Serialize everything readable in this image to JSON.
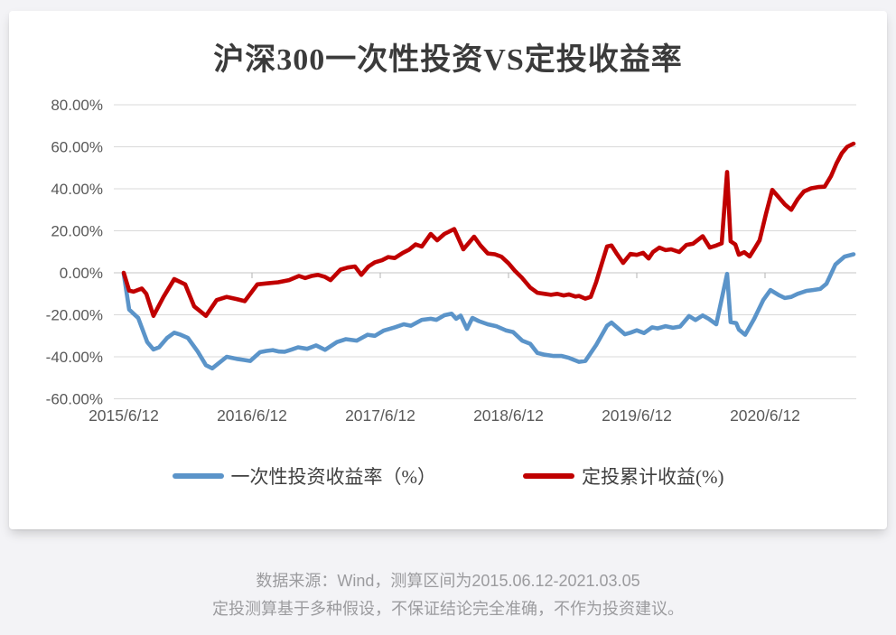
{
  "page": {
    "background": "#f3f3f6"
  },
  "card": {
    "background": "#ffffff"
  },
  "chart_data": {
    "type": "line",
    "title": "沪深300一次性投资VS定投收益率",
    "grid": true,
    "legend_position": "bottom",
    "x_axis": {
      "tick_labels": [
        "2015/6/12",
        "2016/6/12",
        "2017/6/12",
        "2018/6/12",
        "2019/6/12",
        "2020/6/12"
      ],
      "note": "x values of points are years since 2015/6/12; data runs to 2021.03.05"
    },
    "y_axis": {
      "tick_labels": [
        "80.00%",
        "60.00%",
        "40.00%",
        "20.00%",
        "0.00%",
        "-20.00%",
        "-40.00%",
        "-60.00%"
      ],
      "max": 80,
      "min": -60,
      "step": 20,
      "unit": "%"
    },
    "colors": {
      "one_time": "#5b94c9",
      "regular_plan": "#c00000",
      "gridline": "#d9d9d9",
      "axis_text": "#595959"
    },
    "series": [
      {
        "name": "一次性投资收益率（%）",
        "color": "#5b94c9",
        "points": [
          [
            0,
            -0.5
          ],
          [
            0.042,
            -17.5
          ],
          [
            0.077,
            -19.5
          ],
          [
            0.113,
            -21.5
          ],
          [
            0.183,
            -33
          ],
          [
            0.232,
            -36.5
          ],
          [
            0.275,
            -35.5
          ],
          [
            0.338,
            -31
          ],
          [
            0.394,
            -28.5
          ],
          [
            0.444,
            -29.5
          ],
          [
            0.5,
            -31
          ],
          [
            0.577,
            -37.5
          ],
          [
            0.641,
            -44
          ],
          [
            0.69,
            -45.5
          ],
          [
            0.732,
            -43.5
          ],
          [
            0.803,
            -40
          ],
          [
            0.88,
            -41
          ],
          [
            0.937,
            -41.5
          ],
          [
            0.986,
            -42
          ],
          [
            1.063,
            -37.8
          ],
          [
            1.113,
            -37.2
          ],
          [
            1.162,
            -36.8
          ],
          [
            1.211,
            -37.5
          ],
          [
            1.254,
            -37.6
          ],
          [
            1.31,
            -36.5
          ],
          [
            1.359,
            -35.5
          ],
          [
            1.43,
            -36.2
          ],
          [
            1.5,
            -34.6
          ],
          [
            1.57,
            -36.7
          ],
          [
            1.662,
            -33
          ],
          [
            1.732,
            -31.6
          ],
          [
            1.817,
            -32.3
          ],
          [
            1.901,
            -29.5
          ],
          [
            1.958,
            -30
          ],
          [
            2.028,
            -27.5
          ],
          [
            2.113,
            -26
          ],
          [
            2.183,
            -24.5
          ],
          [
            2.239,
            -25.2
          ],
          [
            2.324,
            -22.4
          ],
          [
            2.394,
            -21.9
          ],
          [
            2.437,
            -22.4
          ],
          [
            2.5,
            -20.2
          ],
          [
            2.556,
            -19.5
          ],
          [
            2.592,
            -21.9
          ],
          [
            2.627,
            -20.4
          ],
          [
            2.676,
            -26.7
          ],
          [
            2.718,
            -21.5
          ],
          [
            2.768,
            -23
          ],
          [
            2.838,
            -24.5
          ],
          [
            2.908,
            -25.5
          ],
          [
            2.979,
            -27.4
          ],
          [
            3.035,
            -28.2
          ],
          [
            3.106,
            -32.3
          ],
          [
            3.169,
            -33.8
          ],
          [
            3.225,
            -38.2
          ],
          [
            3.282,
            -39
          ],
          [
            3.352,
            -39.6
          ],
          [
            3.415,
            -39.6
          ],
          [
            3.472,
            -40.5
          ],
          [
            3.521,
            -41.7
          ],
          [
            3.549,
            -42.4
          ],
          [
            3.599,
            -42
          ],
          [
            3.683,
            -34.4
          ],
          [
            3.768,
            -25.2
          ],
          [
            3.803,
            -23.7
          ],
          [
            3.859,
            -26.7
          ],
          [
            3.908,
            -29.3
          ],
          [
            3.951,
            -28.5
          ],
          [
            4,
            -27.4
          ],
          [
            4.056,
            -28.7
          ],
          [
            4.12,
            -26
          ],
          [
            4.162,
            -26.5
          ],
          [
            4.225,
            -25.4
          ],
          [
            4.282,
            -26.2
          ],
          [
            4.338,
            -25.6
          ],
          [
            4.408,
            -20.6
          ],
          [
            4.458,
            -22.5
          ],
          [
            4.514,
            -20.3
          ],
          [
            4.563,
            -22
          ],
          [
            4.62,
            -24.5
          ],
          [
            4.704,
            -0.5
          ],
          [
            4.732,
            -23.5
          ],
          [
            4.775,
            -24
          ],
          [
            4.796,
            -27
          ],
          [
            4.845,
            -29.5
          ],
          [
            4.915,
            -22
          ],
          [
            4.986,
            -13
          ],
          [
            5.042,
            -8.2
          ],
          [
            5.113,
            -10.8
          ],
          [
            5.155,
            -12
          ],
          [
            5.204,
            -11.5
          ],
          [
            5.254,
            -10
          ],
          [
            5.324,
            -8.6
          ],
          [
            5.373,
            -8.2
          ],
          [
            5.43,
            -7.7
          ],
          [
            5.479,
            -5.2
          ],
          [
            5.549,
            4
          ],
          [
            5.62,
            7.7
          ],
          [
            5.69,
            8.8
          ]
        ]
      },
      {
        "name": "定投累计收益(%)",
        "color": "#c00000",
        "points": [
          [
            0,
            0
          ],
          [
            0.042,
            -8.5
          ],
          [
            0.077,
            -9
          ],
          [
            0.141,
            -7.5
          ],
          [
            0.176,
            -10
          ],
          [
            0.232,
            -20.5
          ],
          [
            0.31,
            -11.5
          ],
          [
            0.394,
            -3
          ],
          [
            0.479,
            -5.5
          ],
          [
            0.549,
            -16
          ],
          [
            0.641,
            -20.5
          ],
          [
            0.725,
            -13
          ],
          [
            0.803,
            -11.5
          ],
          [
            0.88,
            -12.5
          ],
          [
            0.944,
            -13.5
          ],
          [
            1.042,
            -5.5
          ],
          [
            1.127,
            -5
          ],
          [
            1.204,
            -4.5
          ],
          [
            1.289,
            -3.5
          ],
          [
            1.366,
            -1.5
          ],
          [
            1.415,
            -2.5
          ],
          [
            1.465,
            -1.5
          ],
          [
            1.514,
            -1
          ],
          [
            1.57,
            -2
          ],
          [
            1.613,
            -3.5
          ],
          [
            1.69,
            1.5
          ],
          [
            1.746,
            2.5
          ],
          [
            1.803,
            3
          ],
          [
            1.852,
            -1
          ],
          [
            1.908,
            3
          ],
          [
            1.958,
            5
          ],
          [
            2.014,
            6
          ],
          [
            2.063,
            7.5
          ],
          [
            2.113,
            7
          ],
          [
            2.176,
            9.5
          ],
          [
            2.225,
            11
          ],
          [
            2.275,
            13.5
          ],
          [
            2.324,
            12.5
          ],
          [
            2.394,
            18.5
          ],
          [
            2.444,
            15.5
          ],
          [
            2.5,
            18.5
          ],
          [
            2.577,
            20.8
          ],
          [
            2.648,
            11.2
          ],
          [
            2.732,
            17.2
          ],
          [
            2.782,
            13
          ],
          [
            2.838,
            9.2
          ],
          [
            2.894,
            8.8
          ],
          [
            2.944,
            7.7
          ],
          [
            3,
            4.5
          ],
          [
            3.049,
            1
          ],
          [
            3.106,
            -2.5
          ],
          [
            3.169,
            -7
          ],
          [
            3.225,
            -9.5
          ],
          [
            3.282,
            -10
          ],
          [
            3.331,
            -10.5
          ],
          [
            3.38,
            -10
          ],
          [
            3.43,
            -10.8
          ],
          [
            3.472,
            -10.3
          ],
          [
            3.521,
            -11.3
          ],
          [
            3.549,
            -11
          ],
          [
            3.599,
            -12.3
          ],
          [
            3.641,
            -11.5
          ],
          [
            3.683,
            -4.5
          ],
          [
            3.725,
            4
          ],
          [
            3.768,
            12.5
          ],
          [
            3.803,
            13
          ],
          [
            3.845,
            9
          ],
          [
            3.894,
            4.7
          ],
          [
            3.951,
            9
          ],
          [
            4,
            8.5
          ],
          [
            4.049,
            9.5
          ],
          [
            4.092,
            6.8
          ],
          [
            4.127,
            9.9
          ],
          [
            4.176,
            12
          ],
          [
            4.225,
            10.8
          ],
          [
            4.268,
            11.2
          ],
          [
            4.331,
            9.9
          ],
          [
            4.387,
            13.3
          ],
          [
            4.437,
            13.8
          ],
          [
            4.514,
            17.4
          ],
          [
            4.57,
            12
          ],
          [
            4.62,
            13
          ],
          [
            4.662,
            14
          ],
          [
            4.704,
            48
          ],
          [
            4.732,
            15
          ],
          [
            4.768,
            13.5
          ],
          [
            4.796,
            8.6
          ],
          [
            4.838,
            9.8
          ],
          [
            4.88,
            7.8
          ],
          [
            4.923,
            12
          ],
          [
            4.958,
            15.5
          ],
          [
            5.007,
            28
          ],
          [
            5.056,
            39.5
          ],
          [
            5.106,
            36
          ],
          [
            5.155,
            32.5
          ],
          [
            5.204,
            30
          ],
          [
            5.254,
            35
          ],
          [
            5.303,
            38.7
          ],
          [
            5.359,
            40.2
          ],
          [
            5.415,
            40.8
          ],
          [
            5.465,
            41
          ],
          [
            5.514,
            46
          ],
          [
            5.556,
            52
          ],
          [
            5.599,
            57
          ],
          [
            5.641,
            60
          ],
          [
            5.69,
            61.5
          ]
        ]
      }
    ]
  },
  "footer": {
    "line1": "数据来源：Wind，测算区间为2015.06.12-2021.03.05",
    "line2": "定投测算基于多种假设，不保证结论完全准确，不作为投资建议。"
  }
}
